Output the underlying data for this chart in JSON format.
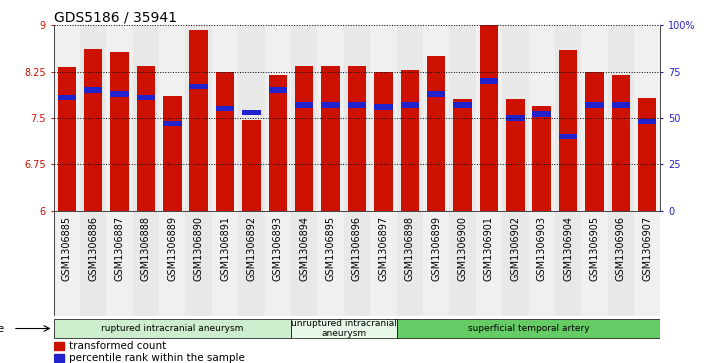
{
  "title": "GDS5186 / 35941",
  "samples": [
    "GSM1306885",
    "GSM1306886",
    "GSM1306887",
    "GSM1306888",
    "GSM1306889",
    "GSM1306890",
    "GSM1306891",
    "GSM1306892",
    "GSM1306893",
    "GSM1306894",
    "GSM1306895",
    "GSM1306896",
    "GSM1306897",
    "GSM1306898",
    "GSM1306899",
    "GSM1306900",
    "GSM1306901",
    "GSM1306902",
    "GSM1306903",
    "GSM1306904",
    "GSM1306905",
    "GSM1306906",
    "GSM1306907"
  ],
  "transformed_count": [
    8.33,
    8.62,
    8.57,
    8.35,
    7.85,
    8.92,
    8.24,
    7.47,
    8.19,
    8.35,
    8.35,
    8.35,
    8.25,
    8.28,
    8.5,
    7.8,
    9.0,
    7.8,
    7.7,
    8.6,
    8.25,
    8.19,
    7.82
  ],
  "percentile_rank": [
    61,
    65,
    63,
    61,
    47,
    67,
    55,
    53,
    65,
    57,
    57,
    57,
    56,
    57,
    63,
    57,
    70,
    50,
    52,
    40,
    57,
    57,
    48
  ],
  "groups": [
    {
      "label": "ruptured intracranial aneurysm",
      "start": 0,
      "end": 9,
      "color": "#cceecc"
    },
    {
      "label": "unruptured intracranial\naneurysm",
      "start": 9,
      "end": 13,
      "color": "#e8f8e8"
    },
    {
      "label": "superficial temporal artery",
      "start": 13,
      "end": 23,
      "color": "#66cc66"
    }
  ],
  "ylim": [
    6,
    9
  ],
  "yticks": [
    6,
    6.75,
    7.5,
    8.25,
    9
  ],
  "right_yticks": [
    0,
    25,
    50,
    75,
    100
  ],
  "right_ylabels": [
    "0",
    "25",
    "50",
    "75",
    "100%"
  ],
  "bar_color": "#cc1100",
  "marker_color": "#2222cc",
  "title_fontsize": 10,
  "tick_fontsize": 7,
  "label_fontsize": 7,
  "legend_label_red": "transformed count",
  "legend_label_blue": "percentile rank within the sample"
}
